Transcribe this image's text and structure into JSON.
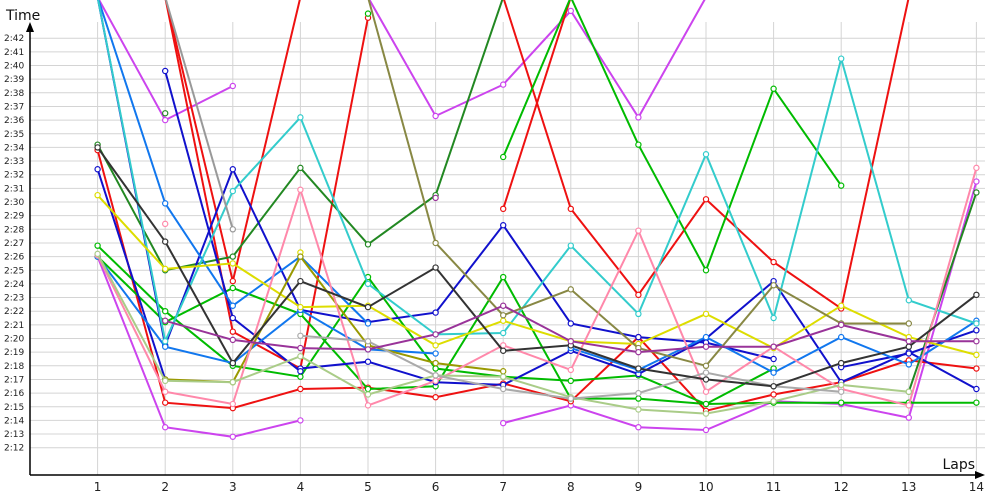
{
  "chart_data": {
    "type": "line",
    "title": "",
    "xlabel": "Laps",
    "ylabel": "Time",
    "x": [
      1,
      2,
      3,
      4,
      5,
      6,
      7,
      8,
      9,
      10,
      11,
      12,
      13,
      14
    ],
    "xlim": [
      0,
      14.3
    ],
    "ylim": [
      130,
      164
    ],
    "yticks": [
      "2:12",
      "2:13",
      "2:14",
      "2:15",
      "2:16",
      "2:17",
      "2:18",
      "2:19",
      "2:20",
      "2:21",
      "2:22",
      "2:23",
      "2:24",
      "2:25",
      "2:26",
      "2:27",
      "2:28",
      "2:29",
      "2:30",
      "2:31",
      "2:32",
      "2:33",
      "2:34",
      "2:35",
      "2:36",
      "2:37",
      "2:38",
      "2:39",
      "2:40",
      "2:41",
      "2:42"
    ],
    "grid": true,
    "legend": "none",
    "series": [
      {
        "color": "#cc44ee",
        "values": [
          146,
          133.5,
          132.8,
          134,
          null,
          null,
          null,
          null,
          null,
          null,
          null,
          null,
          null,
          null
        ]
      },
      {
        "color": "#cc44ee",
        "values": [
          165,
          156,
          158.5,
          null,
          null,
          null,
          null,
          null,
          null,
          null,
          null,
          null,
          null,
          null
        ]
      },
      {
        "color": "#cc44ee",
        "values": [
          165,
          165,
          null,
          null,
          165,
          156.3,
          158.6,
          164,
          156.2,
          165,
          null,
          null,
          null,
          null
        ]
      },
      {
        "color": "#cc44ee",
        "values": [
          null,
          null,
          null,
          null,
          165,
          null,
          133.8,
          135.1,
          133.5,
          133.3,
          135.4,
          135.2,
          134.2,
          151.5
        ]
      },
      {
        "color": "#ee1111",
        "values": [
          153.8,
          135.3,
          134.9,
          136.3,
          136.4,
          135.7,
          136.7,
          135.4,
          140.1,
          134.7,
          135.9,
          136.8,
          138.4,
          137.8
        ]
      },
      {
        "color": "#ee1111",
        "values": [
          null,
          165,
          140.5,
          137.8,
          163.5,
          null,
          null,
          null,
          null,
          null,
          null,
          null,
          null,
          null
        ]
      },
      {
        "color": "#ee1111",
        "values": [
          null,
          null,
          null,
          null,
          null,
          null,
          165,
          149.5,
          143.2,
          150.2,
          145.6,
          142.2,
          165,
          null
        ]
      },
      {
        "color": "#ee1111",
        "values": [
          null,
          null,
          null,
          165,
          null,
          null,
          149.5,
          165,
          null,
          null,
          null,
          null,
          null,
          null
        ]
      },
      {
        "color": "#ee1111",
        "values": [
          null,
          165,
          144.2,
          165,
          null,
          null,
          null,
          null,
          null,
          null,
          null,
          null,
          null,
          null
        ]
      },
      {
        "color": "#00bb00",
        "values": [
          146.8,
          142,
          138,
          137.2,
          144.5,
          137.8,
          137.2,
          136.9,
          137.3,
          135.2,
          137.8,
          null,
          null,
          null
        ]
      },
      {
        "color": "#00bb00",
        "values": [
          null,
          null,
          null,
          null,
          163.8,
          null,
          null,
          null,
          null,
          null,
          null,
          null,
          null,
          null
        ]
      },
      {
        "color": "#00bb00",
        "values": [
          146,
          141.2,
          143.7,
          141.8,
          136.3,
          136.5,
          144.5,
          135.6,
          135.6,
          135.2,
          135.3,
          135.3,
          135.3,
          135.3
        ]
      },
      {
        "color": "#00bb00",
        "values": [
          null,
          null,
          null,
          null,
          null,
          null,
          153.3,
          165,
          154.2,
          145,
          158.3,
          151.2,
          null,
          null
        ]
      },
      {
        "color": "#228822",
        "values": [
          154.2,
          145,
          146,
          152.5,
          146.9,
          150.5,
          165,
          null,
          null,
          null,
          null,
          null,
          null,
          null
        ]
      },
      {
        "color": "#228822",
        "values": [
          null,
          156.5,
          null,
          null,
          null,
          null,
          null,
          null,
          null,
          null,
          null,
          null,
          null,
          null
        ]
      },
      {
        "color": "#228822",
        "values": [
          null,
          null,
          null,
          null,
          null,
          null,
          null,
          null,
          null,
          null,
          null,
          null,
          136.1,
          150.7
        ]
      },
      {
        "color": "#1111cc",
        "values": [
          152.4,
          137,
          null,
          137.8,
          138.3,
          136.8,
          136.6,
          139.1,
          137.4,
          140,
          144.2,
          136.8,
          139,
          136.3
        ]
      },
      {
        "color": "#1111cc",
        "values": [
          165,
          139.5,
          152.4,
          142.1,
          141.2,
          141.9,
          148.3,
          141.1,
          140.1,
          139.7,
          138.5,
          null,
          null,
          null
        ]
      },
      {
        "color": "#1111cc",
        "values": [
          null,
          159.6,
          141.5,
          137.6,
          null,
          null,
          null,
          null,
          null,
          null,
          null,
          null,
          null,
          null
        ]
      },
      {
        "color": "#1111cc",
        "values": [
          null,
          null,
          null,
          null,
          null,
          null,
          null,
          null,
          null,
          null,
          null,
          137.9,
          138.9,
          140.6
        ]
      },
      {
        "color": "#1177ee",
        "values": [
          146,
          139.4,
          138.2,
          142.1,
          139.2,
          138.9,
          null,
          null,
          null,
          null,
          null,
          null,
          null,
          null
        ]
      },
      {
        "color": "#1177ee",
        "values": [
          165,
          149.9,
          142.4,
          146,
          141.1,
          null,
          null,
          null,
          null,
          null,
          null,
          null,
          null,
          null
        ]
      },
      {
        "color": "#1177ee",
        "values": [
          null,
          null,
          null,
          null,
          null,
          null,
          null,
          139.3,
          137.7,
          140.1,
          137.5,
          140.1,
          138.1,
          141.3
        ]
      },
      {
        "color": "#33cccc",
        "values": [
          165,
          139.8,
          150.8,
          156.2,
          144,
          140.3,
          140.4,
          146.8,
          141.8,
          153.5,
          141.5,
          160.5,
          142.8,
          141.1
        ]
      },
      {
        "color": "#dddd00",
        "values": [
          150.5,
          145.1,
          145.5,
          142.3,
          142.4,
          139.5,
          141.3,
          139.8,
          139.6,
          141.8,
          139.3,
          142.4,
          140.1,
          138.8
        ]
      },
      {
        "color": "#dddd00",
        "values": [
          null,
          null,
          null,
          146.3,
          null,
          null,
          null,
          null,
          null,
          null,
          null,
          null,
          null,
          null
        ]
      },
      {
        "color": "#999900",
        "values": [
          null,
          137,
          136.8,
          146,
          139.5,
          138.2,
          137.6,
          null,
          null,
          null,
          null,
          null,
          null,
          null
        ]
      },
      {
        "color": "#888844",
        "values": [
          null,
          null,
          null,
          null,
          165,
          147,
          141.7,
          143.6,
          139.3,
          138,
          143.9,
          141.1,
          141.1,
          null
        ]
      },
      {
        "color": "#ff88aa",
        "values": [
          146.1,
          136.1,
          135.2,
          150.9,
          135.1,
          136.9,
          139.5,
          137.7,
          147.9,
          136.1,
          139.4,
          136.3,
          135.1,
          152.5
        ]
      },
      {
        "color": "#ff88aa",
        "values": [
          null,
          148.4,
          null,
          null,
          null,
          null,
          null,
          null,
          null,
          null,
          null,
          null,
          null,
          null
        ]
      },
      {
        "color": "#aacc88",
        "values": [
          146.2,
          136.9,
          136.8,
          138.7,
          135.9,
          137.3,
          137.2,
          135.7,
          134.8,
          134.5,
          135.4,
          136.6,
          136.1,
          null
        ]
      },
      {
        "color": "#aaaaaa",
        "values": [
          null,
          null,
          null,
          140.2,
          139.8,
          137.3,
          136.3,
          135.6,
          136,
          137.5,
          136.5,
          136.1,
          null,
          null
        ]
      },
      {
        "color": "#999999",
        "values": [
          null,
          165,
          148,
          null,
          null,
          null,
          null,
          null,
          null,
          null,
          null,
          null,
          null,
          null
        ]
      },
      {
        "color": "#333333",
        "values": [
          154,
          147.1,
          138.2,
          144.2,
          142.3,
          145.2,
          139.1,
          139.5,
          137.8,
          137,
          136.5,
          138.2,
          139.4,
          143.2
        ]
      },
      {
        "color": "#993399",
        "values": [
          null,
          141.3,
          139.9,
          139.3,
          139.2,
          140.3,
          142.4,
          139.8,
          139,
          139.4,
          139.4,
          141,
          139.8,
          139.8
        ]
      },
      {
        "color": "#993399",
        "values": [
          null,
          null,
          null,
          null,
          null,
          150.3,
          null,
          null,
          null,
          null,
          null,
          null,
          null,
          null
        ]
      }
    ]
  }
}
